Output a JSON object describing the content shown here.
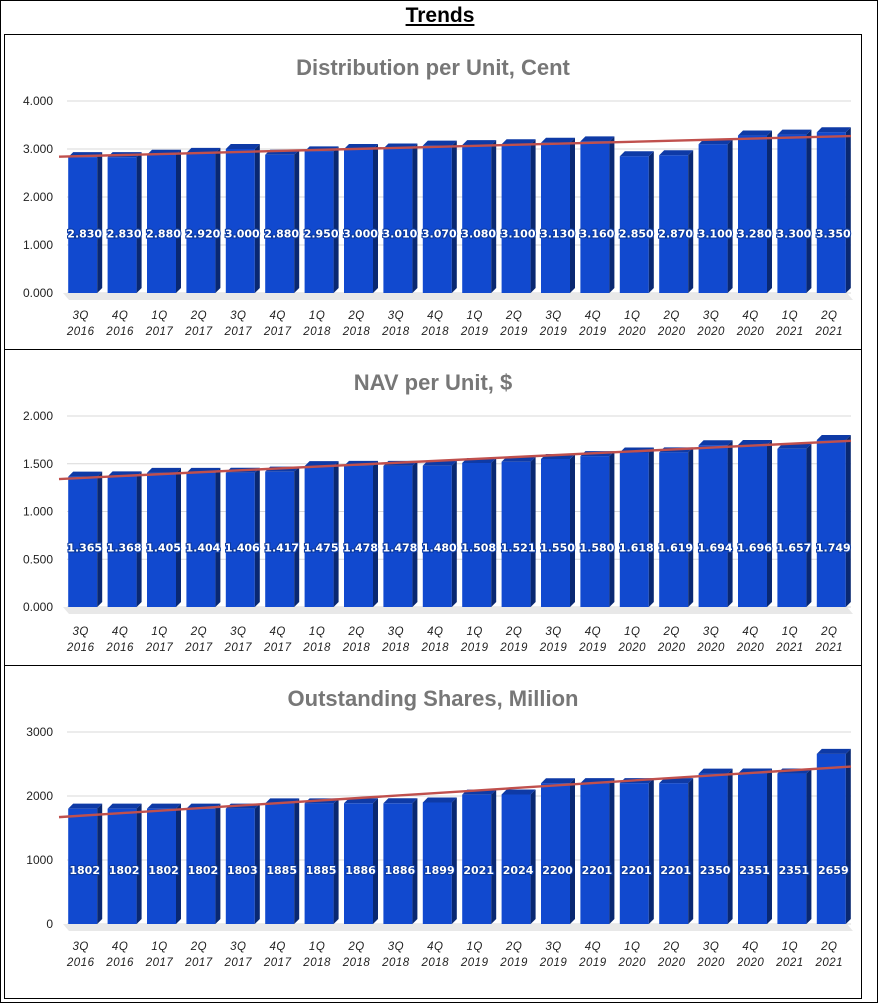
{
  "page": {
    "title": "Trends"
  },
  "chart_data": [
    {
      "type": "bar",
      "title": "Distribution per Unit, Cent",
      "categories": [
        "3Q|2016",
        "4Q|2016",
        "1Q|2017",
        "2Q|2017",
        "3Q|2017",
        "4Q|2017",
        "1Q|2018",
        "2Q|2018",
        "3Q|2018",
        "4Q|2018",
        "1Q|2019",
        "2Q|2019",
        "3Q|2019",
        "4Q|2019",
        "1Q|2020",
        "2Q|2020",
        "3Q|2020",
        "4Q|2020",
        "1Q|2021",
        "2Q|2021"
      ],
      "values": [
        2.83,
        2.83,
        2.88,
        2.92,
        3.0,
        2.88,
        2.95,
        3.0,
        3.01,
        3.07,
        3.08,
        3.1,
        3.13,
        3.16,
        2.85,
        2.87,
        3.1,
        3.28,
        3.3,
        3.35
      ],
      "value_labels": [
        "2.830",
        "2.830",
        "2.880",
        "2.920",
        "3.000",
        "2.880",
        "2.950",
        "3.000",
        "3.010",
        "3.070",
        "3.080",
        "3.100",
        "3.130",
        "3.160",
        "2.850",
        "2.870",
        "3.100",
        "3.280",
        "3.300",
        "3.350"
      ],
      "yticks": [
        "0.000",
        "1.000",
        "2.000",
        "3.000",
        "4.000"
      ],
      "ylim": [
        0,
        4
      ],
      "trendline": {
        "start": 2.84,
        "end": 3.27,
        "color": "#c0504d"
      },
      "bar_color": "#1149cf",
      "grid": true
    },
    {
      "type": "bar",
      "title": "NAV per Unit, $",
      "categories": [
        "3Q|2016",
        "4Q|2016",
        "1Q|2017",
        "2Q|2017",
        "3Q|2017",
        "4Q|2017",
        "1Q|2018",
        "2Q|2018",
        "3Q|2018",
        "4Q|2018",
        "1Q|2019",
        "2Q|2019",
        "3Q|2019",
        "4Q|2019",
        "1Q|2020",
        "2Q|2020",
        "3Q|2020",
        "4Q|2020",
        "1Q|2021",
        "2Q|2021"
      ],
      "values": [
        1.365,
        1.368,
        1.405,
        1.404,
        1.406,
        1.417,
        1.475,
        1.478,
        1.478,
        1.48,
        1.508,
        1.521,
        1.55,
        1.58,
        1.618,
        1.619,
        1.694,
        1.696,
        1.657,
        1.749
      ],
      "value_labels": [
        "1.365",
        "1.368",
        "1.405",
        "1.404",
        "1.406",
        "1.417",
        "1.475",
        "1.478",
        "1.478",
        "1.480",
        "1.508",
        "1.521",
        "1.550",
        "1.580",
        "1.618",
        "1.619",
        "1.694",
        "1.696",
        "1.657",
        "1.749"
      ],
      "yticks": [
        "0.000",
        "0.500",
        "1.000",
        "1.500",
        "2.000"
      ],
      "ylim": [
        0,
        2
      ],
      "trendline": {
        "start": 1.34,
        "end": 1.74,
        "color": "#c0504d"
      },
      "bar_color": "#1149cf",
      "grid": true
    },
    {
      "type": "bar",
      "title": "Outstanding Shares, Million",
      "categories": [
        "3Q|2016",
        "4Q|2016",
        "1Q|2017",
        "2Q|2017",
        "3Q|2017",
        "4Q|2017",
        "1Q|2018",
        "2Q|2018",
        "3Q|2018",
        "4Q|2018",
        "1Q|2019",
        "2Q|2019",
        "3Q|2019",
        "4Q|2019",
        "1Q|2020",
        "2Q|2020",
        "3Q|2020",
        "4Q|2020",
        "1Q|2021",
        "2Q|2021"
      ],
      "values": [
        1802,
        1802,
        1802,
        1802,
        1803,
        1885,
        1885,
        1886,
        1886,
        1899,
        2021,
        2024,
        2200,
        2201,
        2201,
        2201,
        2350,
        2351,
        2351,
        2659
      ],
      "value_labels": [
        "1802",
        "1802",
        "1802",
        "1802",
        "1803",
        "1885",
        "1885",
        "1886",
        "1886",
        "1899",
        "2021",
        "2024",
        "2200",
        "2201",
        "2201",
        "2201",
        "2350",
        "2351",
        "2351",
        "2659"
      ],
      "yticks": [
        "0",
        "1000",
        "2000",
        "3000"
      ],
      "ylim": [
        0,
        3000
      ],
      "trendline": {
        "start": 1670,
        "end": 2460,
        "color": "#c0504d"
      },
      "bar_color": "#1149cf",
      "grid": true
    }
  ]
}
